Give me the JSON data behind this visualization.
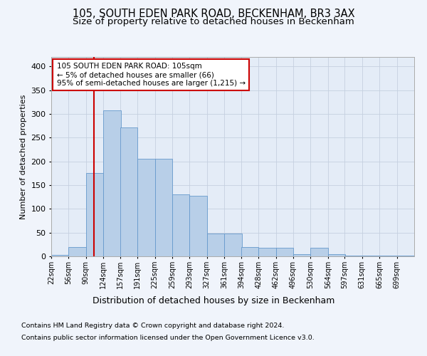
{
  "title_line1": "105, SOUTH EDEN PARK ROAD, BECKENHAM, BR3 3AX",
  "title_line2": "Size of property relative to detached houses in Beckenham",
  "xlabel": "Distribution of detached houses by size in Beckenham",
  "ylabel": "Number of detached properties",
  "bar_color": "#b8cfe8",
  "bar_edge_color": "#6699cc",
  "annotation_box_color": "#cc0000",
  "annotation_text": "105 SOUTH EDEN PARK ROAD: 105sqm\n← 5% of detached houses are smaller (66)\n95% of semi-detached houses are larger (1,215) →",
  "property_line_x": 105,
  "property_line_color": "#cc0000",
  "footer_line1": "Contains HM Land Registry data © Crown copyright and database right 2024.",
  "footer_line2": "Contains public sector information licensed under the Open Government Licence v3.0.",
  "categories": [
    "22sqm",
    "56sqm",
    "90sqm",
    "124sqm",
    "157sqm",
    "191sqm",
    "225sqm",
    "259sqm",
    "293sqm",
    "327sqm",
    "361sqm",
    "394sqm",
    "428sqm",
    "462sqm",
    "496sqm",
    "530sqm",
    "564sqm",
    "597sqm",
    "631sqm",
    "665sqm",
    "699sqm"
  ],
  "bin_edges": [
    22,
    56,
    90,
    124,
    157,
    191,
    225,
    259,
    293,
    327,
    361,
    394,
    428,
    462,
    496,
    530,
    564,
    597,
    631,
    665,
    699
  ],
  "bin_width": 34,
  "values": [
    3,
    19,
    175,
    308,
    272,
    205,
    205,
    130,
    128,
    48,
    48,
    20,
    18,
    18,
    5,
    18,
    5,
    2,
    2,
    1,
    1
  ],
  "ylim": [
    0,
    420
  ],
  "yticks": [
    0,
    50,
    100,
    150,
    200,
    250,
    300,
    350,
    400
  ],
  "background_color": "#f0f4fb",
  "plot_background": "#e4ecf7",
  "grid_color": "#c5d0e0",
  "title_fontsize": 10.5,
  "subtitle_fontsize": 9.5,
  "figsize": [
    6.0,
    5.0
  ],
  "dpi": 100
}
